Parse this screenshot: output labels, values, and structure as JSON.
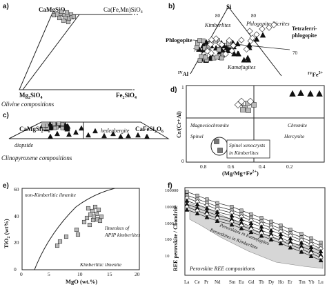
{
  "panels": {
    "a": {
      "label": "a)",
      "top_left": "CaMgSiO",
      "top_left_sub": "4",
      "top_right_a": "Ca(Fe,Mn)SiO",
      "top_right_sub": "4",
      "bottom_left": "Mg",
      "bottom_left_sub1": "2",
      "bottom_left_mid": "SiO",
      "bottom_left_sub2": "4",
      "bottom_right": "Fe",
      "bottom_right_sub1": "2",
      "bottom_right_mid": "SiO",
      "bottom_right_sub2": "4",
      "caption": "Olivine compositions"
    },
    "b": {
      "label": "b)",
      "apex": "Si",
      "tick_top_left": "80",
      "tick_top_right": "80",
      "tick_mid_left": "70",
      "tick_mid_right": "70",
      "phlogopite": "Phlogopite",
      "kimberlites": "Kimberlites",
      "phlogopite_picrites": "Phlogopite-Picrites",
      "tetraferri": "Tetraferri-",
      "tetraferri2": "phlogopite",
      "kamafugites": "Kamafugites",
      "al_label": "Al",
      "al_sup": "IV",
      "fe_label": "Fe",
      "fe_sup": "IV",
      "fe_sup2": "3+"
    },
    "c": {
      "label": "c)",
      "top_left": "CaMgSi",
      "top_left_sub1": "2",
      "top_left_mid": "O",
      "top_left_sub2": "6",
      "top_right": "CaFeSi",
      "top_right_sub1": "2",
      "top_right_mid": "O",
      "top_right_sub2": "6",
      "diopside": "diopside",
      "hedenbergite": "hedenbergite",
      "caption": "Clinopyroxene compositions"
    },
    "d": {
      "label": "d)",
      "ylabel": "Cr/(Cr+Al)",
      "xlabel": "(Mg/Mg+Fe",
      "xlabel_sup": "2+",
      "xlabel_end": ")",
      "magnesiochromite": "Magnesiochromite",
      "chromite": "Chromite",
      "spinel": "Spinel",
      "hercynite": "Hercynite",
      "spinel_box1": "Spinel xenocrysts",
      "spinel_box2": "in Kimberlites",
      "xticks": [
        "0.8",
        "0.6",
        "0.4",
        "0.2"
      ],
      "yticks": [
        "1",
        "0"
      ]
    },
    "e": {
      "label": "e)",
      "ylabel": "TiO",
      "ylabel_sub": "2",
      "ylabel_end": " (wt%)",
      "xlabel": "MgO (wt.%)",
      "non_kimb": "non-Kimberlitic ilmenite",
      "kimb": "Kimberlitic ilmenite",
      "apip1": "Ilmenites of",
      "apip2": "APIP kimberlites",
      "xticks": [
        "0",
        "5",
        "10",
        "15",
        "20"
      ],
      "yticks": [
        "60",
        "40",
        "20",
        "0"
      ]
    },
    "f": {
      "label": "f)",
      "ylabel": "REE perovskite / Chondrite",
      "yticks": [
        "100000",
        "10000",
        "1000",
        "100",
        "10"
      ],
      "xticks": [
        "La",
        "Ce",
        "Pr",
        "Nd",
        "Sm",
        "Eu",
        "Gd",
        "Tb",
        "Dy",
        "Ho",
        "Er",
        "Tm",
        "Yb",
        "Lu"
      ],
      "kamafugites": "Perovskites in Kamafugites",
      "kimberlites": "Perovskites in Kimberlites",
      "caption": "Perovskite REE compositions"
    }
  },
  "colors": {
    "square_fill": "#b9b9b9",
    "triangle_fill": "#111111",
    "diamond_fill": "#ffffff",
    "band_fill": "#d6d6d6"
  }
}
